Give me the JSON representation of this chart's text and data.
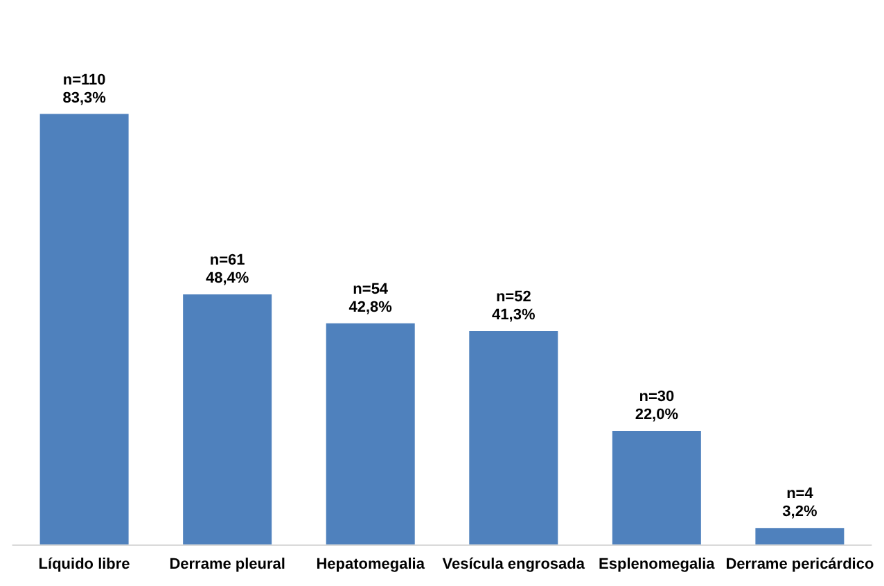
{
  "chart_data": {
    "type": "bar",
    "categories": [
      "Líquido libre",
      "Derrame pleural",
      "Hepatomegalia",
      "Vesícula engrosada",
      "Esplenomegalia",
      "Derrame pericárdico"
    ],
    "values": [
      83.3,
      48.4,
      42.8,
      41.3,
      22.0,
      3.2
    ],
    "value_labels": [
      "n=110\n83,3%",
      "n=61\n48,4%",
      "n=54\n42,8%",
      "n=52\n41,3%",
      "n=30\n22,0%",
      "n=4\n3,2%"
    ],
    "color": "#4f81bd",
    "grid": false
  }
}
